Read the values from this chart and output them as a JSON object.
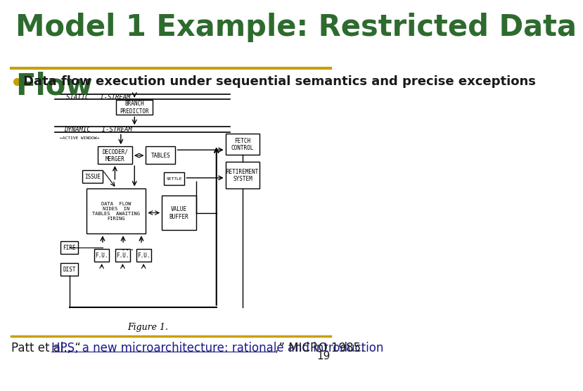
{
  "title_line1": "Model 1 Example: Restricted Data",
  "title_line2": "Flow",
  "subtitle_bullet": "Data flow execution under sequential semantics and precise exceptions",
  "page_number": "19",
  "title_color": "#2E6B2E",
  "subtitle_color": "#1a1a1a",
  "footer_color": "#1a1a8a",
  "footer_plain_color": "#1a1a1a",
  "separator_color": "#C8A000",
  "background_color": "#ffffff",
  "bullet_color": "#C8A000",
  "title_fontsize": 30,
  "subtitle_fontsize": 13,
  "footer_fontsize": 12,
  "page_num_fontsize": 11
}
